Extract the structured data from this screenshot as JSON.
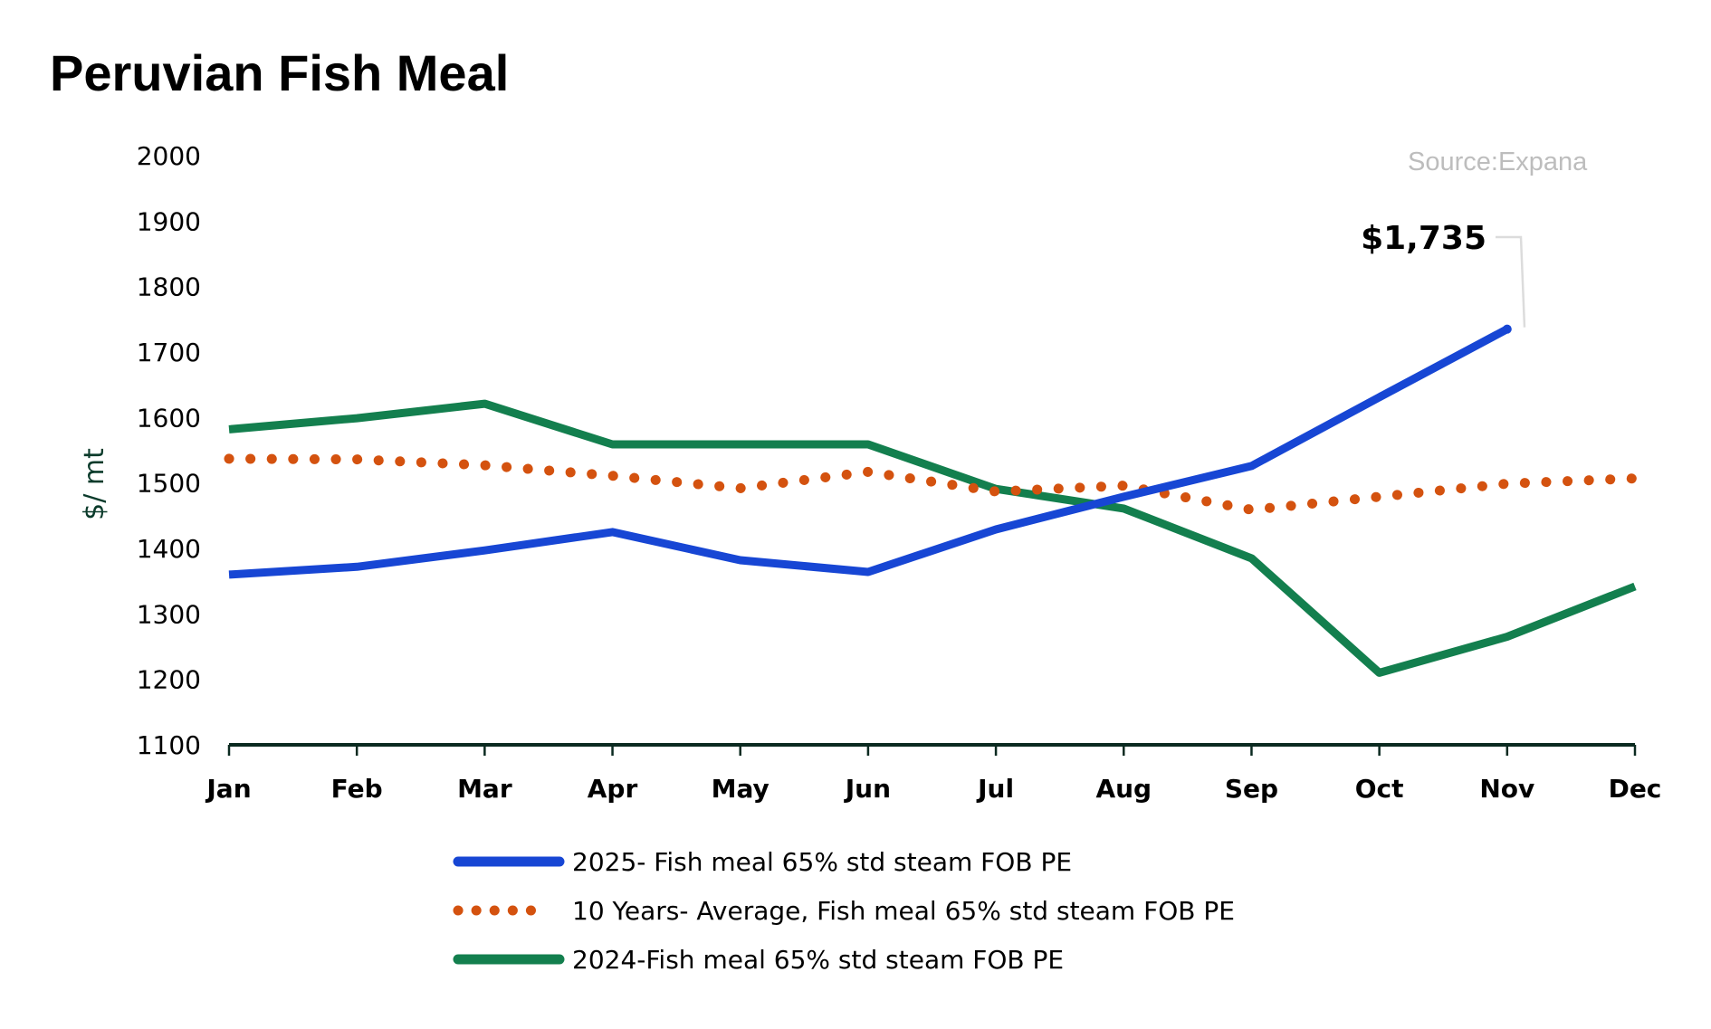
{
  "chart_data": {
    "type": "line",
    "title": "Peruvian Fish Meal",
    "source": "Source:Expana",
    "xlabel": "",
    "ylabel": "$/ mt",
    "ylim": [
      1100,
      2000
    ],
    "yticks": [
      "1100",
      "1200",
      "1300",
      "1400",
      "1500",
      "1600",
      "1700",
      "1800",
      "1900",
      "2000"
    ],
    "ytick_values": [
      1100,
      1200,
      1300,
      1400,
      1500,
      1600,
      1700,
      1800,
      1900,
      2000
    ],
    "categories": [
      "Jan",
      "Feb",
      "Mar",
      "Apr",
      "May",
      "Jun",
      "Jul",
      "Aug",
      "Sep",
      "Oct",
      "Nov",
      "Dec"
    ],
    "grid": false,
    "legend_position": "bottom",
    "series": [
      {
        "name": "2025- Fish meal 65% std steam FOB PE",
        "color": "#1746d4",
        "style": "solid",
        "values": [
          1360,
          1372,
          1397,
          1425,
          1382,
          1364,
          1429,
          1479,
          1526,
          1631,
          1735,
          null
        ]
      },
      {
        "name": "10 Years- Average, Fish meal 65% std steam FOB PE",
        "color": "#d4520f",
        "style": "dotted",
        "values": [
          1537,
          1536,
          1527,
          1511,
          1492,
          1517,
          1487,
          1496,
          1459,
          1479,
          1499,
          1507
        ]
      },
      {
        "name": "2024-Fish meal 65% std steam FOB PE",
        "color": "#137f4e",
        "style": "solid",
        "values": [
          1582,
          1599,
          1621,
          1559,
          1559,
          1559,
          1491,
          1461,
          1385,
          1210,
          1265,
          1342
        ]
      }
    ],
    "annotations": [
      {
        "text": "$1,735",
        "series": 0,
        "category": "Nov",
        "value": 1735
      }
    ],
    "axis_color": "#0b2a20"
  }
}
